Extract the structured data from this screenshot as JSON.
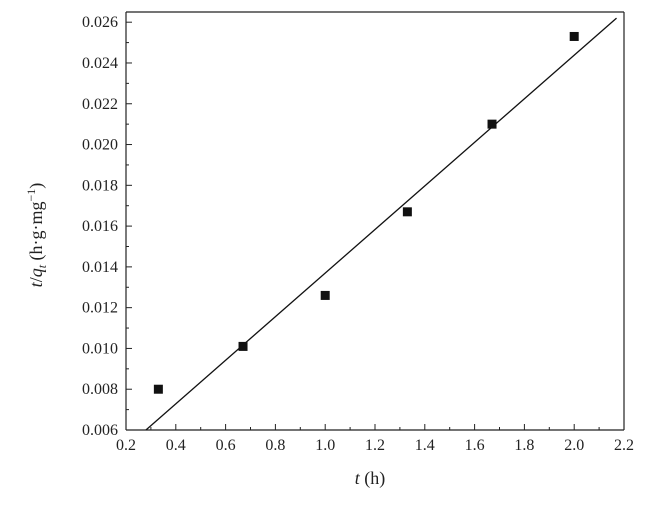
{
  "chart_data": {
    "type": "scatter",
    "xlabel_var": "t",
    "xlabel_unit": " (h)",
    "ylabel_var": "t",
    "ylabel_slash": "/",
    "ylabel_q": "q",
    "ylabel_sub": "t",
    "ylabel_unit_pre": " (h·g·mg",
    "ylabel_unit_sup": "−1",
    "ylabel_unit_post": ")",
    "xlim": [
      0.2,
      2.2
    ],
    "ylim": [
      0.006,
      0.0265
    ],
    "xticks": [
      "0.2",
      "0.4",
      "0.6",
      "0.8",
      "1.0",
      "1.2",
      "1.4",
      "1.6",
      "1.8",
      "2.0",
      "2.2"
    ],
    "yticks": [
      "0.006",
      "0.008",
      "0.010",
      "0.012",
      "0.014",
      "0.016",
      "0.018",
      "0.020",
      "0.022",
      "0.024",
      "0.026"
    ],
    "series": [
      {
        "points": [
          {
            "x": 0.33,
            "y": 0.008
          },
          {
            "x": 0.67,
            "y": 0.0101
          },
          {
            "x": 1.0,
            "y": 0.0126
          },
          {
            "x": 1.33,
            "y": 0.0167
          },
          {
            "x": 1.67,
            "y": 0.021
          },
          {
            "x": 2.0,
            "y": 0.0253
          }
        ]
      }
    ],
    "fit_line": {
      "x": [
        0.28,
        2.17
      ],
      "y": [
        0.006,
        0.0262
      ]
    },
    "grid": false,
    "colors": {
      "marker": "#111111",
      "line": "#111111",
      "axis": "#222222"
    }
  }
}
